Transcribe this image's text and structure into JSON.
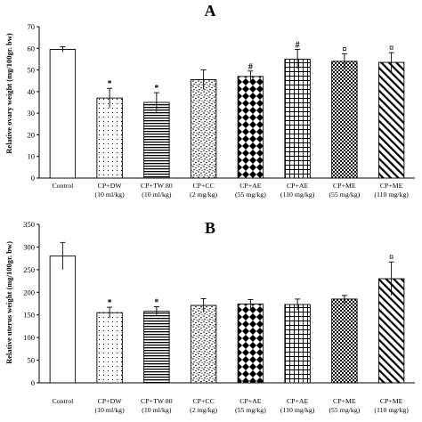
{
  "chart_data": [
    {
      "panel": "A",
      "type": "bar",
      "ylabel": "Relative ovary weight (mg/100gr. bw)",
      "ylim": [
        0,
        70
      ],
      "yticks": [
        0,
        10,
        20,
        30,
        40,
        50,
        60,
        70
      ],
      "grid": false,
      "categories": [
        [
          "Control",
          ""
        ],
        [
          "CP+DW",
          "(10 ml/kg)"
        ],
        [
          "CP+TW 80",
          "(10 ml/kg)"
        ],
        [
          "CP+CC",
          "(2 mg/kg)"
        ],
        [
          "CP+AE",
          "(55 mg/kg)"
        ],
        [
          "CP+AE",
          "(110 mg/kg)"
        ],
        [
          "CP+ME",
          "(55 mg/kg)"
        ],
        [
          "CP+ME",
          "(110 mg/kg)"
        ]
      ],
      "values": [
        59.5,
        37,
        35,
        45.5,
        47,
        55,
        54,
        53.5
      ],
      "errors": [
        1.2,
        4.5,
        4.5,
        4.5,
        2.5,
        4.5,
        3.5,
        4.5
      ],
      "significance": [
        "",
        "*",
        "*",
        "",
        "#",
        "#",
        "¤",
        "¤"
      ],
      "patterns": [
        "white",
        "dots",
        "hlines",
        "speckle",
        "diamonds",
        "grid",
        "checker",
        "diagonal"
      ]
    },
    {
      "panel": "B",
      "type": "bar",
      "ylabel": "Relative uterus weight (mg/100gr. bw)",
      "ylim": [
        0,
        350
      ],
      "yticks": [
        0,
        50,
        100,
        150,
        200,
        250,
        300,
        350
      ],
      "grid": false,
      "categories": [
        [
          "Control",
          ""
        ],
        [
          "CP+DW",
          "(10 ml/kg)"
        ],
        [
          "CP+TW 80",
          "(10 ml/kg)"
        ],
        [
          "CP+CC",
          "(2 mg/kg)"
        ],
        [
          "CP+AE",
          "(55 mg/kg)"
        ],
        [
          "CP+AE",
          "(110 mg/kg)"
        ],
        [
          "CP+ME",
          "(55 mg/kg)"
        ],
        [
          "CP+ME",
          "(110 mg/kg)"
        ]
      ],
      "values": [
        280,
        155,
        158,
        171,
        174,
        173,
        185,
        230
      ],
      "errors": [
        30,
        12,
        10,
        15,
        10,
        12,
        8,
        37
      ],
      "significance": [
        "",
        "*",
        "*",
        "",
        "",
        "",
        "",
        "¤"
      ],
      "patterns": [
        "white",
        "dots",
        "hlines",
        "speckle",
        "diamonds",
        "grid",
        "checker",
        "diagonal"
      ]
    }
  ]
}
